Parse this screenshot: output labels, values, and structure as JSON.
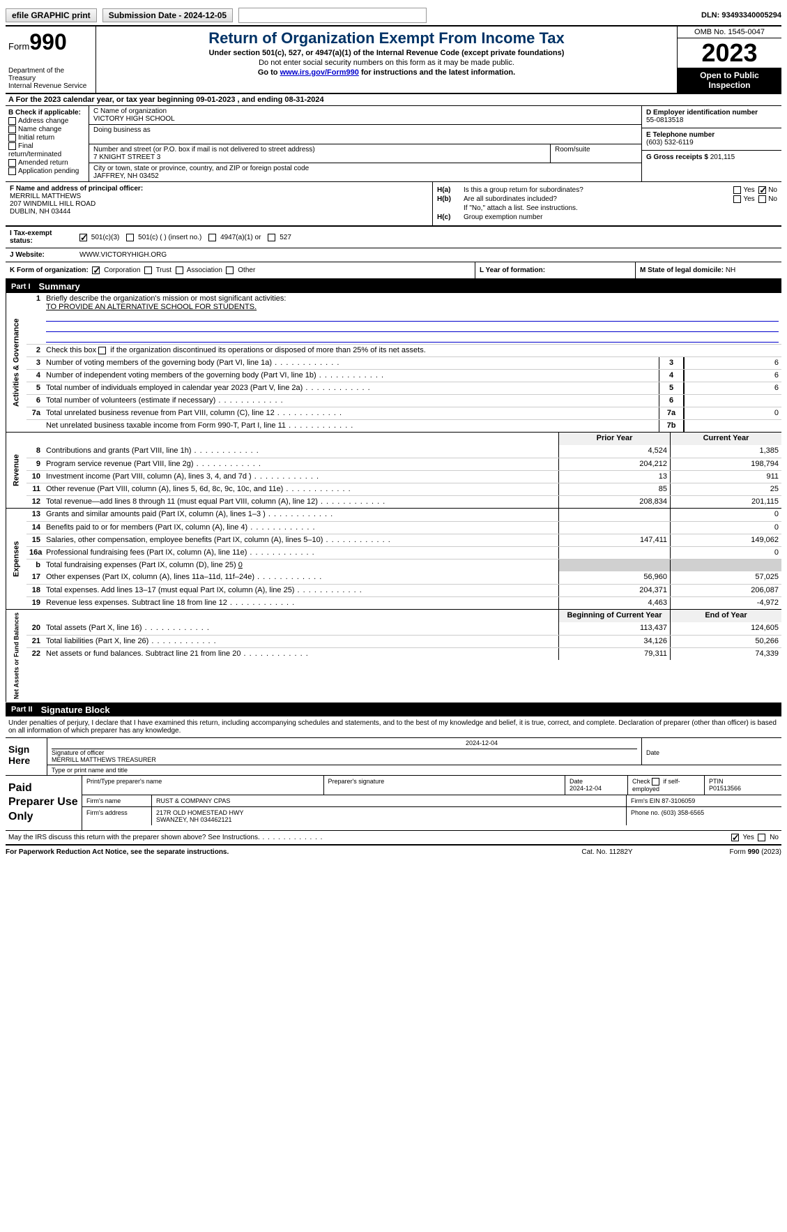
{
  "topbar": {
    "efile_label": "efile GRAPHIC print",
    "submission_label": "Submission Date - 2024-12-05",
    "dln_label": "DLN: 93493340005294"
  },
  "header": {
    "form_word": "Form",
    "form_number": "990",
    "dept": "Department of the Treasury\nInternal Revenue Service",
    "title": "Return of Organization Exempt From Income Tax",
    "subtitle": "Under section 501(c), 527, or 4947(a)(1) of the Internal Revenue Code (except private foundations)",
    "note1": "Do not enter social security numbers on this form as it may be made public.",
    "note2_pre": "Go to ",
    "note2_link": "www.irs.gov/Form990",
    "note2_post": " for instructions and the latest information.",
    "omb": "OMB No. 1545-0047",
    "year": "2023",
    "open": "Open to Public Inspection"
  },
  "period": {
    "text_pre": "For the 2023 calendar year, or tax year beginning ",
    "begin": "09-01-2023",
    "text_mid": " , and ending ",
    "end": "08-31-2024"
  },
  "boxB": {
    "title": "B Check if applicable:",
    "items": [
      "Address change",
      "Name change",
      "Initial return",
      "Final return/terminated",
      "Amended return",
      "Application pending"
    ]
  },
  "boxC": {
    "name_label": "C Name of organization",
    "name": "VICTORY HIGH SCHOOL",
    "dba_label": "Doing business as",
    "dba": "",
    "street_label": "Number and street (or P.O. box if mail is not delivered to street address)",
    "room_label": "Room/suite",
    "street": "7 KNIGHT STREET 3",
    "city_label": "City or town, state or province, country, and ZIP or foreign postal code",
    "city": "JAFFREY, NH  03452"
  },
  "boxD": {
    "label": "D Employer identification number",
    "value": "55-0813518"
  },
  "boxE": {
    "label": "E Telephone number",
    "value": "(603) 532-6119"
  },
  "boxG": {
    "label": "G Gross receipts $",
    "value": "201,115"
  },
  "boxF": {
    "label": "F  Name and address of principal officer:",
    "name": "MERRILL MATTHEWS",
    "addr1": "207 WINDMILL HILL ROAD",
    "addr2": "DUBLIN, NH  03444"
  },
  "boxH": {
    "a_label": "H(a)",
    "a_text": "Is this a group return for subordinates?",
    "a_no_checked": true,
    "b_label": "H(b)",
    "b_text": "Are all subordinates included?",
    "b_note": "If \"No,\" attach a list. See instructions.",
    "c_label": "H(c)",
    "c_text": "Group exemption number"
  },
  "rowI": {
    "label": "I",
    "text": "Tax-exempt status:",
    "opt1": "501(c)(3)",
    "opt2": "501(c) (  ) (insert no.)",
    "opt3": "4947(a)(1) or",
    "opt4": "527"
  },
  "rowJ": {
    "label": "J",
    "text": "Website:",
    "value": "WWW.VICTORYHIGH.ORG"
  },
  "rowK": {
    "label": "K Form of organization:",
    "opts": [
      "Corporation",
      "Trust",
      "Association",
      "Other"
    ],
    "l_label": "L Year of formation:",
    "l_value": "",
    "m_label": "M State of legal domicile:",
    "m_value": "NH"
  },
  "part1": {
    "num": "Part I",
    "title": "Summary"
  },
  "section_labels": {
    "ag": "Activities & Governance",
    "rev": "Revenue",
    "exp": "Expenses",
    "net": "Net Assets or Fund Balances"
  },
  "ag": {
    "l1_label": "Briefly describe the organization's mission or most significant activities:",
    "l1_value": "TO PROVIDE AN ALTERNATIVE SCHOOL FOR STUDENTS.",
    "l2": "Check this box       if the organization discontinued its operations or disposed of more than 25% of its net assets.",
    "l3": "Number of voting members of the governing body (Part VI, line 1a)",
    "l3v": "6",
    "l4": "Number of independent voting members of the governing body (Part VI, line 1b)",
    "l4v": "6",
    "l5": "Total number of individuals employed in calendar year 2023 (Part V, line 2a)",
    "l5v": "6",
    "l6": "Total number of volunteers (estimate if necessary)",
    "l6v": "",
    "l7a": "Total unrelated business revenue from Part VIII, column (C), line 12",
    "l7av": "0",
    "l7b": "Net unrelated business taxable income from Form 990-T, Part I, line 11",
    "l7bv": ""
  },
  "rev": {
    "hdr_prior": "Prior Year",
    "hdr_current": "Current Year",
    "rows": [
      {
        "n": "8",
        "t": "Contributions and grants (Part VIII, line 1h)",
        "p": "4,524",
        "c": "1,385"
      },
      {
        "n": "9",
        "t": "Program service revenue (Part VIII, line 2g)",
        "p": "204,212",
        "c": "198,794"
      },
      {
        "n": "10",
        "t": "Investment income (Part VIII, column (A), lines 3, 4, and 7d )",
        "p": "13",
        "c": "911"
      },
      {
        "n": "11",
        "t": "Other revenue (Part VIII, column (A), lines 5, 6d, 8c, 9c, 10c, and 11e)",
        "p": "85",
        "c": "25"
      },
      {
        "n": "12",
        "t": "Total revenue—add lines 8 through 11 (must equal Part VIII, column (A), line 12)",
        "p": "208,834",
        "c": "201,115"
      }
    ]
  },
  "exp": {
    "rows": [
      {
        "n": "13",
        "t": "Grants and similar amounts paid (Part IX, column (A), lines 1–3 )",
        "p": "",
        "c": "0"
      },
      {
        "n": "14",
        "t": "Benefits paid to or for members (Part IX, column (A), line 4)",
        "p": "",
        "c": "0"
      },
      {
        "n": "15",
        "t": "Salaries, other compensation, employee benefits (Part IX, column (A), lines 5–10)",
        "p": "147,411",
        "c": "149,062"
      },
      {
        "n": "16a",
        "t": "Professional fundraising fees (Part IX, column (A), line 11e)",
        "p": "",
        "c": "0"
      }
    ],
    "l16b_pre": "Total fundraising expenses (Part IX, column (D), line 25)",
    "l16b_val": "0",
    "rows2": [
      {
        "n": "17",
        "t": "Other expenses (Part IX, column (A), lines 11a–11d, 11f–24e)",
        "p": "56,960",
        "c": "57,025"
      },
      {
        "n": "18",
        "t": "Total expenses. Add lines 13–17 (must equal Part IX, column (A), line 25)",
        "p": "204,371",
        "c": "206,087"
      },
      {
        "n": "19",
        "t": "Revenue less expenses. Subtract line 18 from line 12",
        "p": "4,463",
        "c": "-4,972"
      }
    ]
  },
  "net": {
    "hdr_begin": "Beginning of Current Year",
    "hdr_end": "End of Year",
    "rows": [
      {
        "n": "20",
        "t": "Total assets (Part X, line 16)",
        "p": "113,437",
        "c": "124,605"
      },
      {
        "n": "21",
        "t": "Total liabilities (Part X, line 26)",
        "p": "34,126",
        "c": "50,266"
      },
      {
        "n": "22",
        "t": "Net assets or fund balances. Subtract line 21 from line 20",
        "p": "79,311",
        "c": "74,339"
      }
    ]
  },
  "part2": {
    "num": "Part II",
    "title": "Signature Block"
  },
  "sig": {
    "intro": "Under penalties of perjury, I declare that I have examined this return, including accompanying schedules and statements, and to the best of my knowledge and belief, it is true, correct, and complete. Declaration of preparer (other than officer) is based on all information of which preparer has any knowledge.",
    "here": "Sign Here",
    "sig_label": "Signature of officer",
    "sig_date": "2024-12-04",
    "date_label": "Date",
    "name_label": "Type or print name and title",
    "name": "MERRILL MATTHEWS  TREASURER"
  },
  "paid": {
    "label": "Paid Preparer Use Only",
    "h1": "Print/Type preparer's name",
    "h2": "Preparer's signature",
    "h3": "Date",
    "h3v": "2024-12-04",
    "h4": "Check        if self-employed",
    "h5": "PTIN",
    "h5v": "P01513566",
    "firm_label": "Firm's name",
    "firm": "RUST & COMPANY CPAS",
    "firm_ein_label": "Firm's EIN",
    "firm_ein": "87-3106059",
    "addr_label": "Firm's address",
    "addr1": "217R OLD HOMESTEAD HWY",
    "addr2": "SWANZEY, NH  034462121",
    "phone_label": "Phone no.",
    "phone": "(603) 358-6565"
  },
  "discuss": "May the IRS discuss this return with the preparer shown above? See Instructions.",
  "footer": {
    "left": "For Paperwork Reduction Act Notice, see the separate instructions.",
    "mid": "Cat. No. 11282Y",
    "right_pre": "Form ",
    "right_form": "990",
    "right_post": " (2023)"
  },
  "yn": {
    "yes": "Yes",
    "no": "No"
  }
}
